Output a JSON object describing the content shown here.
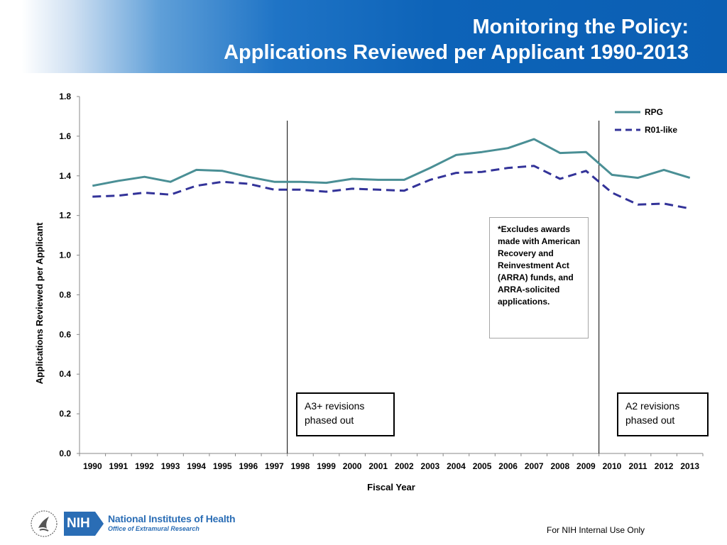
{
  "header": {
    "title_line1": "Monitoring the Policy:",
    "title_line2": "Applications Reviewed per Applicant 1990-2013",
    "background_color": "#0b5fb3"
  },
  "chart_data": {
    "type": "line",
    "x": [
      1990,
      1991,
      1992,
      1993,
      1994,
      1995,
      1996,
      1997,
      1998,
      1999,
      2000,
      2001,
      2002,
      2003,
      2004,
      2005,
      2006,
      2007,
      2008,
      2009,
      2010,
      2011,
      2012,
      2013
    ],
    "series": [
      {
        "name": "RPG",
        "color": "#4a8f95",
        "dashed": false,
        "values": [
          1.35,
          1.375,
          1.395,
          1.37,
          1.43,
          1.425,
          1.395,
          1.37,
          1.37,
          1.365,
          1.385,
          1.38,
          1.38,
          1.44,
          1.505,
          1.52,
          1.54,
          1.585,
          1.515,
          1.52,
          1.405,
          1.39,
          1.43,
          1.39
        ]
      },
      {
        "name": "R01-like",
        "color": "#333399",
        "dashed": true,
        "values": [
          1.295,
          1.3,
          1.315,
          1.305,
          1.35,
          1.37,
          1.36,
          1.33,
          1.33,
          1.32,
          1.335,
          1.33,
          1.325,
          1.38,
          1.415,
          1.42,
          1.44,
          1.45,
          1.385,
          1.425,
          1.315,
          1.255,
          1.26,
          1.235
        ]
      }
    ],
    "title": "Monitoring the Policy: Applications Reviewed per Applicant 1990-2013",
    "xlabel": "Fiscal Year",
    "ylabel": "Applications Reviewed per Applicant",
    "ylim": [
      0,
      1.8
    ],
    "yticks": [
      0.0,
      0.2,
      0.4,
      0.6,
      0.8,
      1.0,
      1.2,
      1.4,
      1.6,
      1.8
    ],
    "ytick_labels": [
      "0.0",
      "0.2",
      "0.4",
      "0.6",
      "0.8",
      "1.0",
      "1.2",
      "1.4",
      "1.6",
      "1.8"
    ],
    "grid": false,
    "legend_position": "top-right",
    "events": [
      {
        "x": 1997.5,
        "label": "A3+ revisions phased out"
      },
      {
        "x": 2009.5,
        "label": "A2 revisions phased out"
      }
    ]
  },
  "annotations": {
    "note": "*Excludes awards made with American Recovery and Reinvestment Act  (ARRA) funds, and ARRA-solicited applications.",
    "event_a3": "A3+ revisions phased out",
    "event_a2": "A2 revisions phased out"
  },
  "footer": {
    "internal_use": "For NIH Internal Use Only",
    "nih_badge": "NIH",
    "nih_name": "National Institutes of Health",
    "nih_office": "Office of Extramural Research",
    "logo_hhs_icon": "hhs-eagle-icon",
    "brand_color": "#2a6db5"
  }
}
